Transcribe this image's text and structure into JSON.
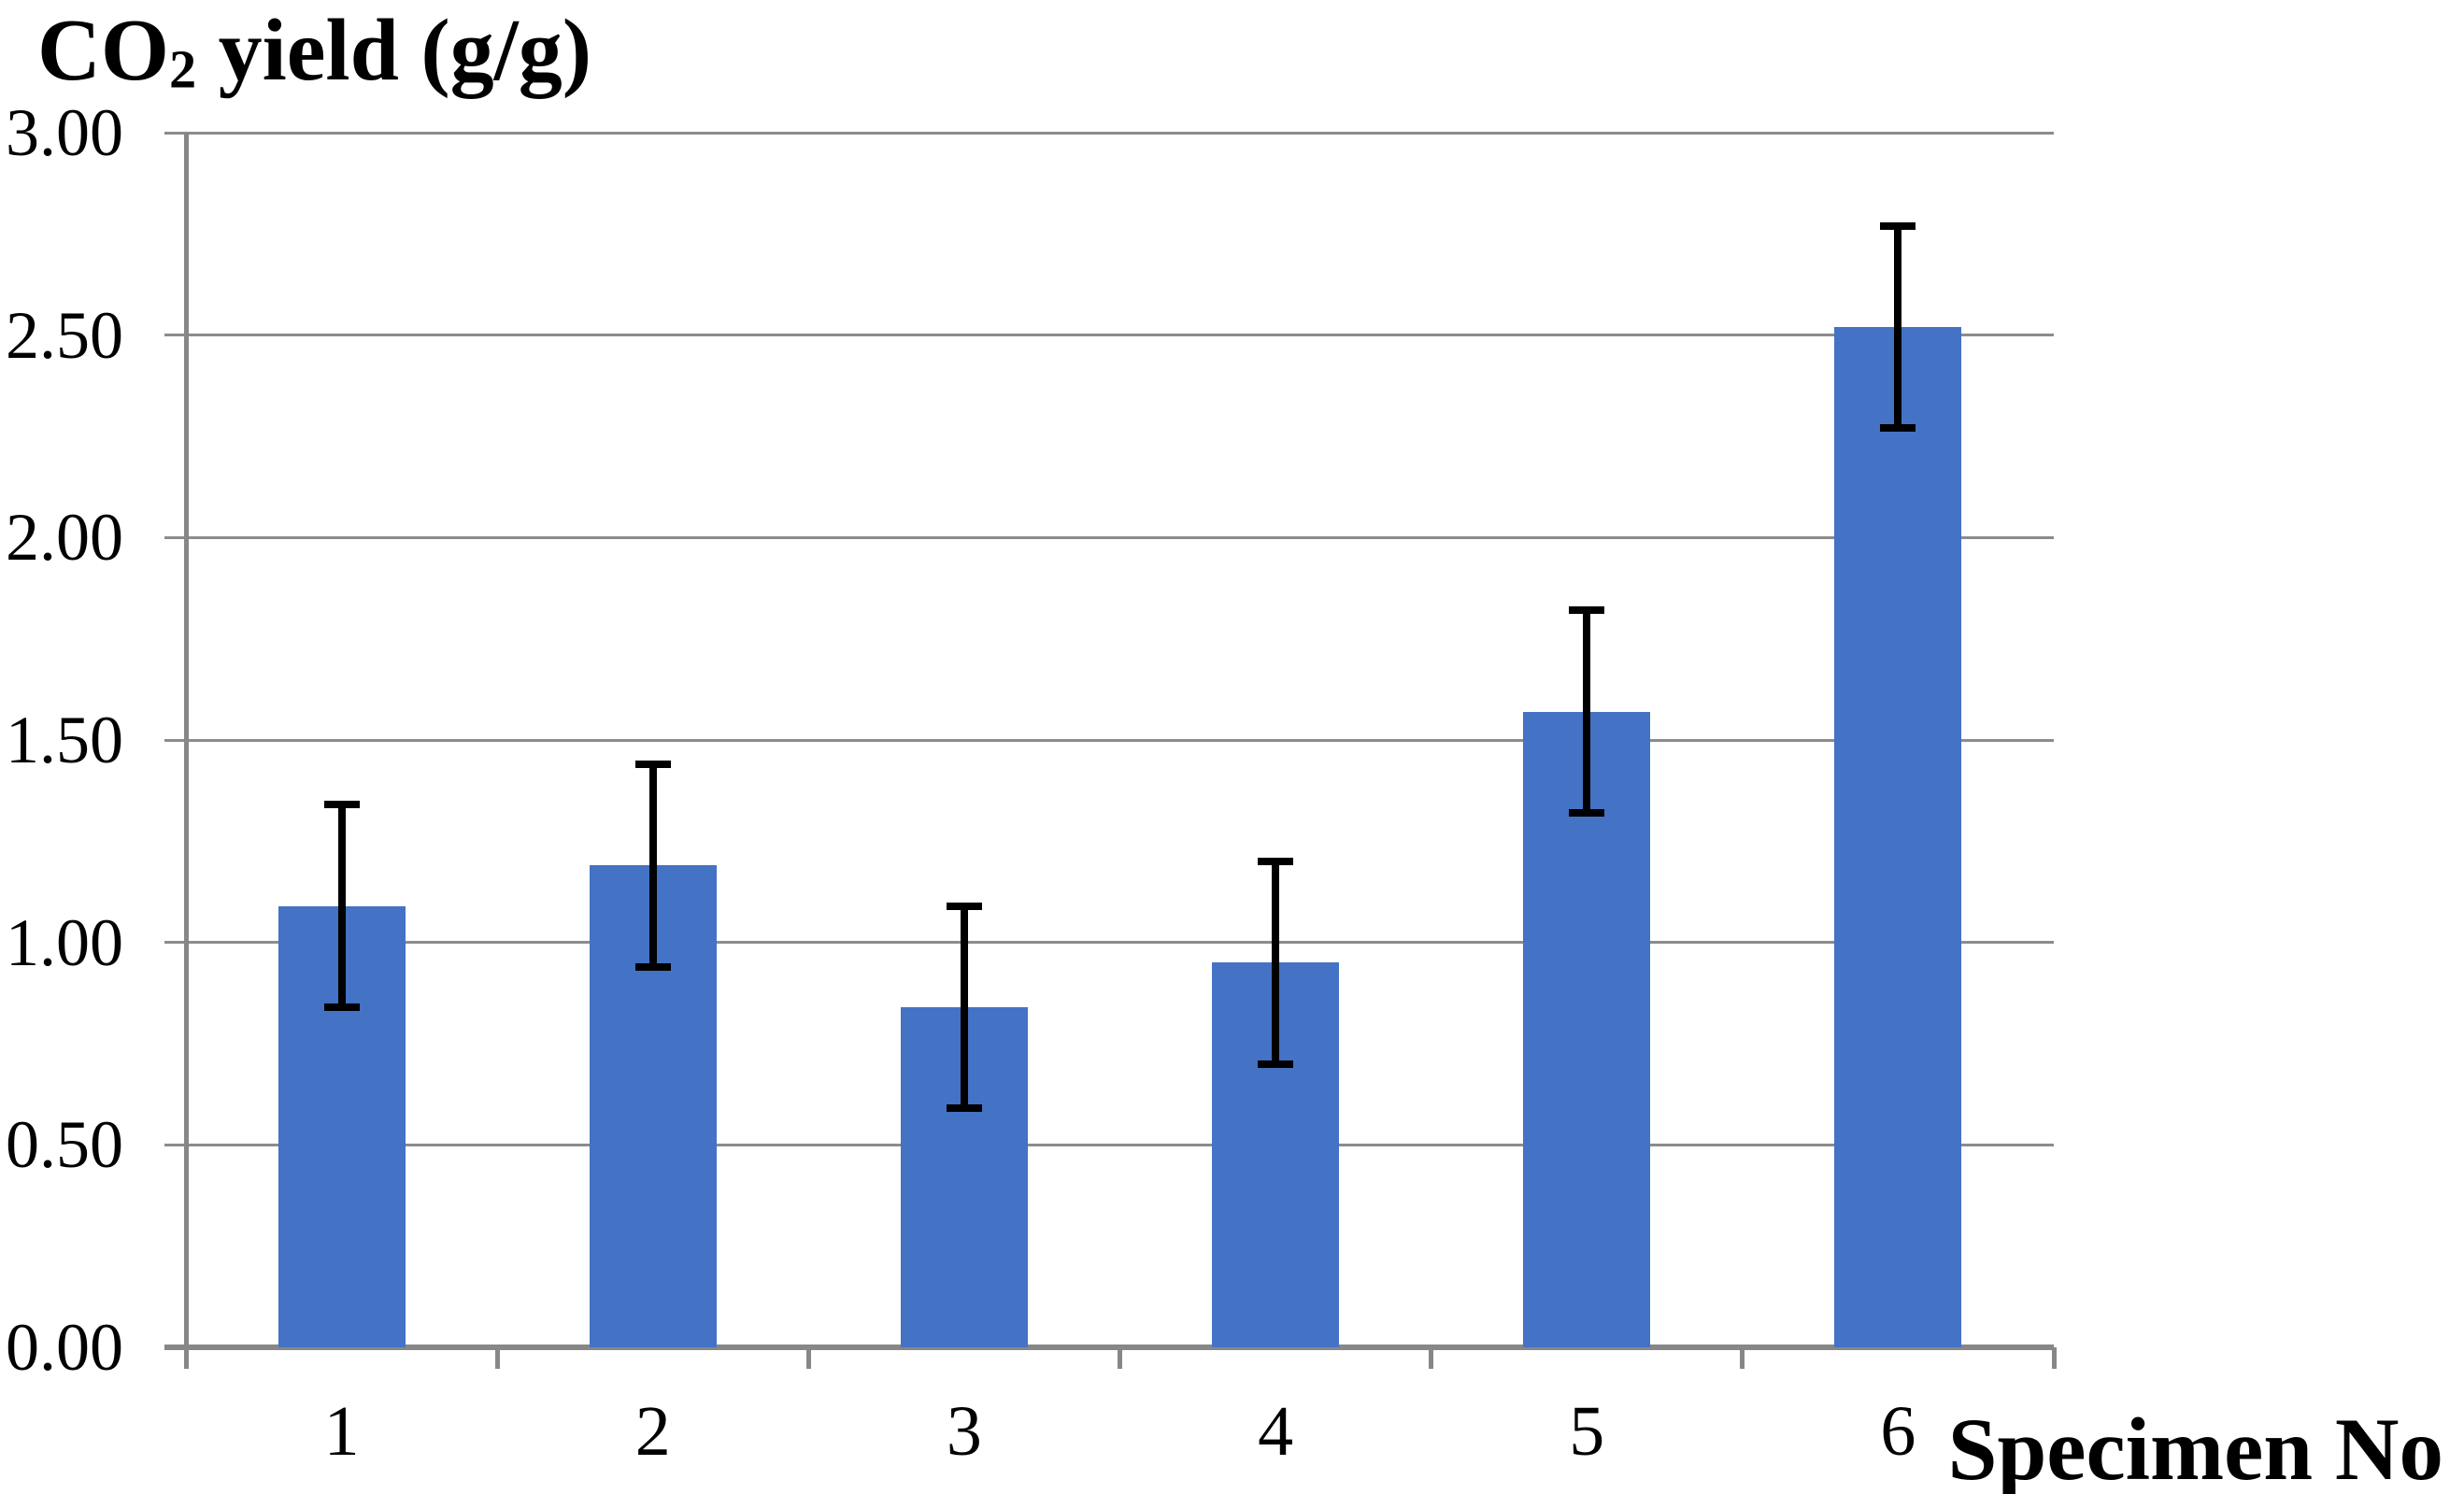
{
  "chart_data": {
    "type": "bar",
    "title": {
      "prefix": "CO",
      "subscript": "2",
      "suffix": " yield (g/g)",
      "full_text": "CO2 yield (g/g)"
    },
    "xlabel": "Specimen No",
    "ylabel": "",
    "categories": [
      "1",
      "2",
      "3",
      "4",
      "5",
      "6"
    ],
    "values": [
      1.09,
      1.19,
      0.84,
      0.95,
      1.57,
      2.52
    ],
    "errors": [
      0.25,
      0.25,
      0.25,
      0.25,
      0.25,
      0.25
    ],
    "ylim": [
      0,
      3
    ],
    "ytick_labels": [
      "3.00",
      "2.50",
      "2.00",
      "1.50",
      "1.00",
      "0.50",
      "0.00"
    ],
    "grid": true,
    "legend": false,
    "colors": {
      "bar": "#4472C4",
      "error_bar": "#000000",
      "gridline": "#8C8C8C",
      "axis": "#878787",
      "text": "#000000",
      "background": "#FFFFFF"
    }
  }
}
